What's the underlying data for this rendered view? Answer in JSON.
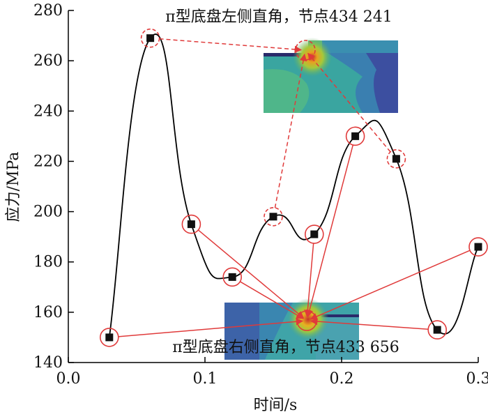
{
  "chart_data": {
    "type": "line",
    "xlabel": "时间/s",
    "ylabel": "应力/MPa",
    "xlim": [
      0.0,
      0.3
    ],
    "ylim": [
      140,
      280
    ],
    "xticks": [
      "0.0",
      "0.1",
      "0.2",
      "0.3"
    ],
    "yticks": [
      "140",
      "160",
      "180",
      "200",
      "220",
      "240",
      "260",
      "280"
    ],
    "grid": false,
    "series": [
      {
        "x": [
          0.03,
          0.06,
          0.09,
          0.12,
          0.15,
          0.18,
          0.21,
          0.24,
          0.27,
          0.3
        ],
        "values": [
          150,
          269,
          195,
          174,
          198,
          191,
          230,
          221,
          153,
          186
        ]
      }
    ],
    "annotations": [
      {
        "text": "π型底盘左侧直角，节点434 241",
        "style": "dashed",
        "color": "#e03a3a",
        "points_x": [
          0.06,
          0.15,
          0.24
        ]
      },
      {
        "text": "π型底盘右侧直角，节点433 656",
        "style": "solid",
        "color": "#e03a3a",
        "points_x": [
          0.03,
          0.09,
          0.12,
          0.18,
          0.21,
          0.27,
          0.3
        ]
      }
    ],
    "colors": {
      "line": "#000000",
      "marker": "#111111",
      "annotation": "#e03a3a"
    }
  }
}
